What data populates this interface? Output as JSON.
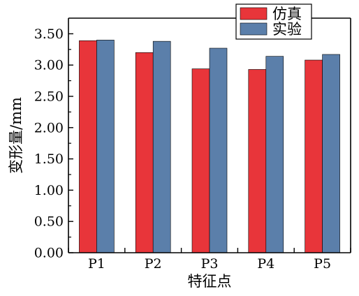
{
  "chart_data": {
    "type": "bar",
    "categories": [
      "P1",
      "P2",
      "P3",
      "P4",
      "P5"
    ],
    "series": [
      {
        "name": "仿真",
        "values": [
          3.39,
          3.2,
          2.94,
          2.93,
          3.08
        ],
        "color": "#e8353a"
      },
      {
        "name": "实验",
        "values": [
          3.4,
          3.38,
          3.27,
          3.14,
          3.17
        ],
        "color": "#5b7faa"
      }
    ],
    "xlabel": "特征点",
    "ylabel": "变形量/mm",
    "ylim": [
      0,
      3.75
    ],
    "yticks": [
      "0.00",
      "0.50",
      "1.00",
      "1.50",
      "2.00",
      "2.50",
      "3.00",
      "3.50"
    ],
    "ytick_values": [
      0,
      0.5,
      1.0,
      1.5,
      2.0,
      2.5,
      3.0,
      3.5
    ],
    "grid": false,
    "legend": "top-right"
  }
}
